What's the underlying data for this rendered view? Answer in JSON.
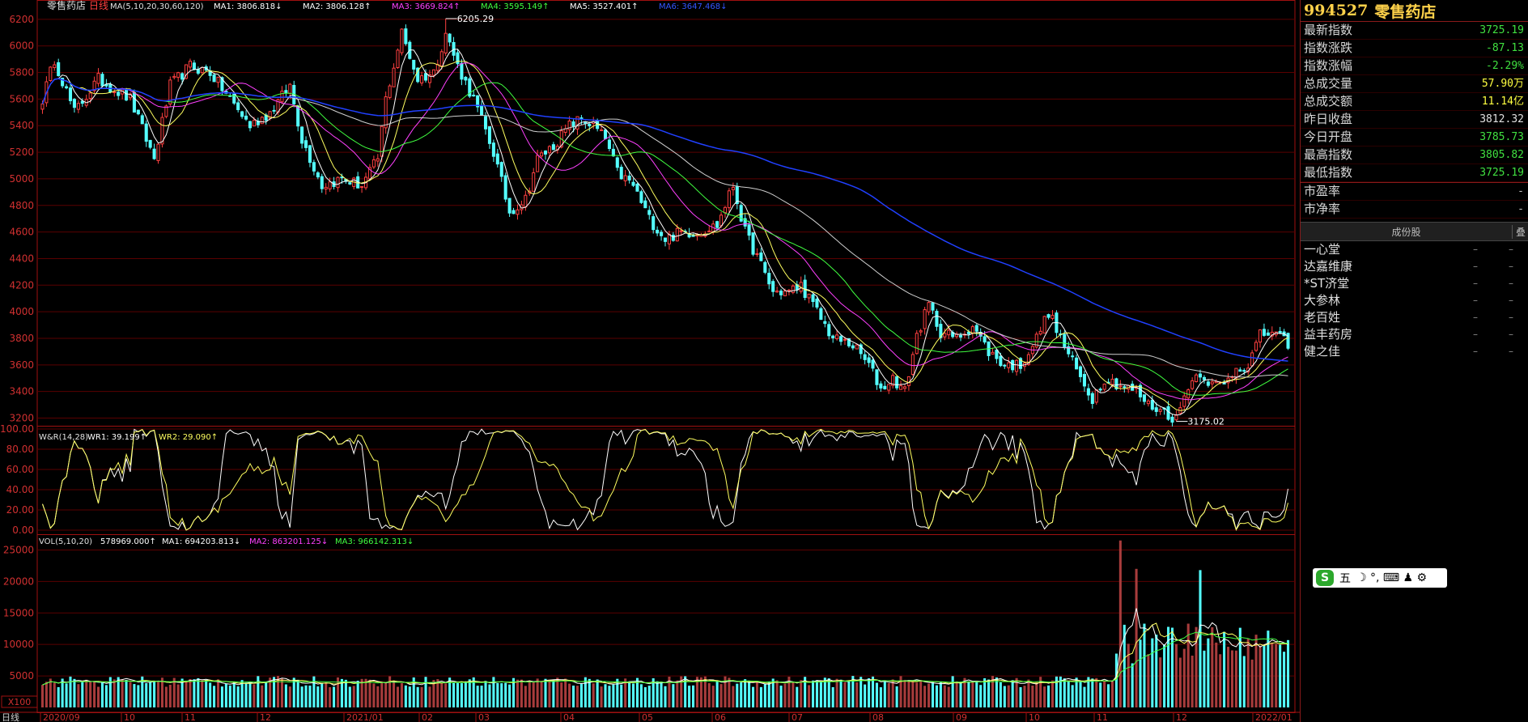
{
  "header": {
    "name": "零售药店",
    "period": "日线",
    "ma_label": "MA(5,10,20,30,60,120)",
    "ma_items": [
      {
        "t": "MA1: 3806.818↓",
        "c": "#ffffff"
      },
      {
        "t": "MA2: 3806.128↑",
        "c": "#ffffff"
      },
      {
        "t": "MA3: 3669.824↑",
        "c": "#ff40ff"
      },
      {
        "t": "MA4: 3595.149↑",
        "c": "#40ff40"
      },
      {
        "t": "MA5: 3527.401↑",
        "c": "#ffffff"
      },
      {
        "t": "MA6: 3647.468↓",
        "c": "#3355ff"
      }
    ]
  },
  "wr_header": {
    "label": "W&R(14,28)",
    "wr1": "WR1: 39.199↑",
    "wr2": "WR2: 29.090↑"
  },
  "vol_header": {
    "label": "VOL(5,10,20)",
    "vol": "578969.000↑",
    "ma1": "MA1: 694203.813↓",
    "ma2": "MA2: 863201.125↓",
    "ma3": "MA3: 966142.313↓"
  },
  "unit_label": "X100",
  "bottom_left": "日线",
  "price_axis": [
    "6200",
    "6000",
    "5800",
    "5600",
    "5400",
    "5200",
    "5000",
    "4800",
    "4600",
    "4400",
    "4200",
    "4000",
    "3800",
    "3600",
    "3400",
    "3200"
  ],
  "wr_axis": [
    "100.00",
    "80.00",
    "60.00",
    "40.00",
    "20.00",
    "0.00"
  ],
  "vol_axis": [
    "25000",
    "20000",
    "15000",
    "10000",
    "5000"
  ],
  "date_labels": [
    "2020/09",
    "10",
    "11",
    "12",
    "2021/01",
    "02",
    "03",
    "04",
    "05",
    "06",
    "07",
    "08",
    "09",
    "10",
    "11",
    "12",
    "2022/01"
  ],
  "annotations": {
    "high": "6205.29",
    "low": "3175.02"
  },
  "chart_data": {
    "type": "candlestick",
    "ylim": [
      3130,
      6260
    ],
    "vol_ylim": [
      0,
      27500
    ],
    "wr_ylim": [
      0,
      100
    ],
    "anchors": [
      [
        0,
        5600
      ],
      [
        3,
        5900
      ],
      [
        8,
        5500
      ],
      [
        14,
        5750
      ],
      [
        22,
        5600
      ],
      [
        28,
        5150
      ],
      [
        32,
        5700
      ],
      [
        37,
        5850
      ],
      [
        42,
        5800
      ],
      [
        47,
        5600
      ],
      [
        52,
        5400
      ],
      [
        57,
        5500
      ],
      [
        62,
        5700
      ],
      [
        65,
        5300
      ],
      [
        70,
        4950
      ],
      [
        75,
        5000
      ],
      [
        80,
        4950
      ],
      [
        84,
        5150
      ],
      [
        86,
        5600
      ],
      [
        90,
        6100
      ],
      [
        94,
        5750
      ],
      [
        98,
        5800
      ],
      [
        101,
        6100
      ],
      [
        104,
        5850
      ],
      [
        108,
        5600
      ],
      [
        113,
        5200
      ],
      [
        117,
        4750
      ],
      [
        121,
        4850
      ],
      [
        124,
        5150
      ],
      [
        128,
        5250
      ],
      [
        132,
        5400
      ],
      [
        135,
        5450
      ],
      [
        138,
        5400
      ],
      [
        141,
        5300
      ],
      [
        144,
        5050
      ],
      [
        148,
        4950
      ],
      [
        152,
        4700
      ],
      [
        156,
        4550
      ],
      [
        160,
        4600
      ],
      [
        164,
        4600
      ],
      [
        169,
        4650
      ],
      [
        173,
        4950
      ],
      [
        176,
        4600
      ],
      [
        180,
        4350
      ],
      [
        183,
        4150
      ],
      [
        187,
        4150
      ],
      [
        190,
        4200
      ],
      [
        194,
        4000
      ],
      [
        198,
        3800
      ],
      [
        203,
        3750
      ],
      [
        207,
        3600
      ],
      [
        210,
        3420
      ],
      [
        213,
        3500
      ],
      [
        216,
        3400
      ],
      [
        219,
        3820
      ],
      [
        222,
        4050
      ],
      [
        225,
        3850
      ],
      [
        229,
        3800
      ],
      [
        233,
        3900
      ],
      [
        237,
        3700
      ],
      [
        241,
        3600
      ],
      [
        245,
        3600
      ],
      [
        249,
        3800
      ],
      [
        252,
        4000
      ],
      [
        255,
        3800
      ],
      [
        260,
        3500
      ],
      [
        263,
        3350
      ],
      [
        266,
        3500
      ],
      [
        270,
        3450
      ],
      [
        274,
        3400
      ],
      [
        277,
        3300
      ],
      [
        281,
        3250
      ],
      [
        284,
        3190
      ],
      [
        287,
        3450
      ],
      [
        290,
        3550
      ],
      [
        293,
        3450
      ],
      [
        296,
        3450
      ],
      [
        299,
        3580
      ],
      [
        302,
        3600
      ],
      [
        305,
        3820
      ],
      [
        308,
        3850
      ],
      [
        312,
        3750
      ]
    ],
    "annual_highlights": {
      "high": 6205.29,
      "low": 3175.02,
      "high_index": 101,
      "low_index": 284
    }
  },
  "panel": {
    "code": "994527",
    "name": "零售药店",
    "stats": [
      {
        "k": "最新指数",
        "v": "3725.19",
        "c": "#40e040"
      },
      {
        "k": "指数涨跌",
        "v": "-87.13",
        "c": "#40e040"
      },
      {
        "k": "指数涨幅",
        "v": "-2.29%",
        "c": "#40e040"
      },
      {
        "k": "总成交量",
        "v": "57.90万",
        "c": "#ffff40"
      },
      {
        "k": "总成交额",
        "v": "11.14亿",
        "c": "#ffff40"
      },
      {
        "k": "昨日收盘",
        "v": "3812.32",
        "c": "#e0e0e0"
      },
      {
        "k": "今日开盘",
        "v": "3785.73",
        "c": "#40e040"
      },
      {
        "k": "最高指数",
        "v": "3805.82",
        "c": "#40e040"
      },
      {
        "k": "最低指数",
        "v": "3725.19",
        "c": "#40e040"
      }
    ],
    "ratios": [
      {
        "k": "市盈率",
        "v": "-"
      },
      {
        "k": "市净率",
        "v": "-"
      }
    ],
    "comp_header": "成份股",
    "comp_header2": "叠",
    "components": [
      "一心堂",
      "达嘉维康",
      "*ST济堂",
      "大参林",
      "老百姓",
      "益丰药房",
      "健之佳"
    ],
    "dash": "–"
  },
  "ime": {
    "logo": "S",
    "label": "五",
    "icons": "☽ °, ⌨ ♟ ⚙"
  }
}
